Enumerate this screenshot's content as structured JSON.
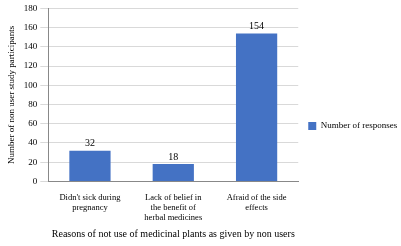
{
  "chart_data": {
    "type": "bar",
    "categories": [
      "Didn't sick during pregnancy",
      "Lack of belief in the benefit of herbal medicines",
      "Afraid of the side effects"
    ],
    "series": [
      {
        "name": "Number of responses",
        "color": "#4472c4",
        "values": [
          32,
          18,
          154
        ]
      }
    ],
    "x_label": "Reasons of not use of medicinal plants as given by non users",
    "y_label": "Number of non user study participants",
    "ylim": [
      0,
      180
    ],
    "yticks": [
      0,
      20,
      40,
      60,
      80,
      100,
      120,
      140,
      160,
      180
    ],
    "grid": true,
    "legend": "right",
    "data_labels": true
  }
}
